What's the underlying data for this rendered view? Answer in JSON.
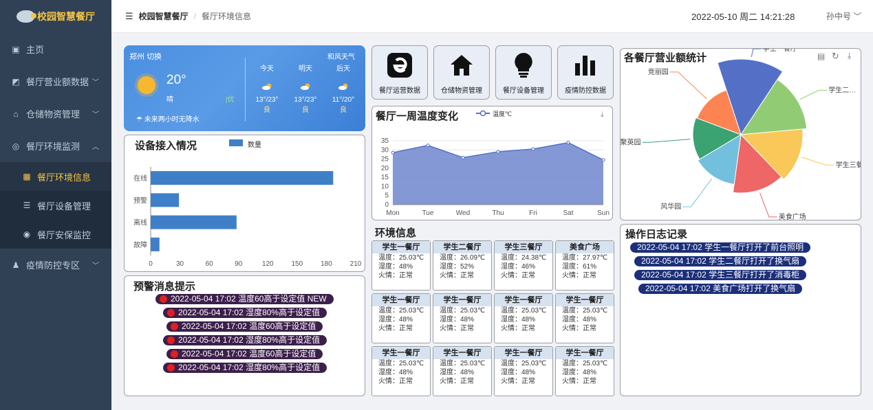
{
  "brand": {
    "title": "校园智慧餐厅"
  },
  "sidebar": {
    "items": [
      {
        "label": "主页",
        "icon": "dashboard-icon"
      },
      {
        "label": "餐厅营业额数据",
        "icon": "chart-icon"
      },
      {
        "label": "仓储物资管理",
        "icon": "home-icon"
      },
      {
        "label": "餐厅环境监测",
        "icon": "monitor-icon"
      },
      {
        "label": "餐厅环境信息",
        "icon": "grid-icon"
      },
      {
        "label": "餐厅设备管理",
        "icon": "sliders-icon"
      },
      {
        "label": "餐厅安保监控",
        "icon": "eye-icon"
      },
      {
        "label": "疫情防控专区",
        "icon": "bell-icon"
      }
    ]
  },
  "header": {
    "breadcrumb_root": "校园智慧餐厅",
    "breadcrumb_current": "餐厅环境信息",
    "datetime": "2022-05-10 周二 14:21:28",
    "user": "孙中号"
  },
  "weather": {
    "city": "郑州",
    "switch": "切换",
    "source": "和风天气",
    "temp": "20°",
    "cond": "晴",
    "aqi": "优",
    "rain": "未来两小时无降水",
    "forecast": [
      {
        "day": "今天",
        "range": "13°/23°",
        "quality": "良"
      },
      {
        "day": "明天",
        "range": "13°/23°",
        "quality": "良"
      },
      {
        "day": "后天",
        "range": "11°/20°",
        "quality": "良"
      }
    ]
  },
  "device": {
    "title": "设备接入情况",
    "legend": "数量",
    "chart_data": {
      "type": "bar",
      "orientation": "horizontal",
      "categories": [
        "在线",
        "预警",
        "离线",
        "故障"
      ],
      "values": [
        187,
        29,
        88,
        9
      ],
      "xlim": [
        0,
        210
      ],
      "xticks": [
        "0",
        "30",
        "60",
        "90",
        "120",
        "150",
        "180",
        "210"
      ],
      "legend_placement": "top",
      "color": "#3f7fc7"
    }
  },
  "nav": [
    {
      "label": "餐厅运营数据",
      "icon": "e-logo-icon"
    },
    {
      "label": "仓储物资管理",
      "icon": "home-icon"
    },
    {
      "label": "餐厅设备管理",
      "icon": "bulb-icon"
    },
    {
      "label": "疫情防控数据",
      "icon": "bar-chart-icon"
    }
  ],
  "temperature": {
    "title": "餐厅一周温度变化",
    "legend": "温度℃",
    "chart_data": {
      "type": "area",
      "categories": [
        "Mon",
        "Tue",
        "Wed",
        "Thu",
        "Fri",
        "Sat",
        "Sun"
      ],
      "values": [
        28.5,
        32.5,
        25.8,
        29,
        30.5,
        34,
        24.5
      ],
      "ylim": [
        0,
        35
      ],
      "yticks": [
        "0",
        "5",
        "10",
        "15",
        "20",
        "25",
        "30",
        "35"
      ],
      "legend_placement": "top",
      "color": "#6e86cf"
    }
  },
  "revenue": {
    "title": "各餐厅营业额统计",
    "chart_data": {
      "type": "pie",
      "rose": true,
      "labels": [
        "学生一餐厅",
        "学生二…",
        "学生三餐厅",
        "美食广场",
        "风华园",
        "聚英园",
        "竞丽园"
      ],
      "values": [
        100,
        86,
        80,
        75,
        63,
        60,
        58
      ],
      "colors": [
        "#5470c6",
        "#91cc75",
        "#fac858",
        "#ee6666",
        "#73c0de",
        "#3ba272",
        "#fc8452"
      ]
    }
  },
  "env": {
    "title": "环境信息",
    "labels": {
      "temp": "温度：",
      "hum": "湿度：",
      "fire": "火情："
    },
    "cards": [
      {
        "name": "学生一餐厅",
        "temp": "25.03℃",
        "hum": "48%",
        "fire": "正常"
      },
      {
        "name": "学生二餐厅",
        "temp": "26.09℃",
        "hum": "52%",
        "fire": "正常"
      },
      {
        "name": "学生三餐厅",
        "temp": "24.38℃",
        "hum": "46%",
        "fire": "正常"
      },
      {
        "name": "美食广场",
        "temp": "27.97℃",
        "hum": "61%",
        "fire": "正常"
      },
      {
        "name": "学生一餐厅",
        "temp": "25.03℃",
        "hum": "48%",
        "fire": "正常"
      },
      {
        "name": "学生一餐厅",
        "temp": "25.03℃",
        "hum": "48%",
        "fire": "正常"
      },
      {
        "name": "学生一餐厅",
        "temp": "25.03℃",
        "hum": "48%",
        "fire": "正常"
      },
      {
        "name": "学生一餐厅",
        "temp": "25.03℃",
        "hum": "48%",
        "fire": "正常"
      },
      {
        "name": "学生一餐厅",
        "temp": "25.03℃",
        "hum": "48%",
        "fire": "正常"
      },
      {
        "name": "学生一餐厅",
        "temp": "25.03℃",
        "hum": "48%",
        "fire": "正常"
      },
      {
        "name": "学生一餐厅",
        "temp": "25.03℃",
        "hum": "48%",
        "fire": "正常"
      },
      {
        "name": "学生一餐厅",
        "temp": "25.03℃",
        "hum": "48%",
        "fire": "正常"
      }
    ]
  },
  "warnings": {
    "title": "预警消息提示",
    "items": [
      "2022-05-04 17:02 温度60高于设定值 NEW",
      "2022-05-04 17:02 湿度80%高于设定值",
      "2022-05-04 17:02 温度60高于设定值",
      "2022-05-04 17:02 湿度80%高于设定值",
      "2022-05-04 17:02 温度60高于设定值",
      "2022-05-04 17:02 湿度80%高于设定值"
    ]
  },
  "logs": {
    "title": "操作日志记录",
    "items": [
      "2022-05-04 17:02 学生一餐厅打开了前台照明",
      "2022-05-04 17:02 学生二餐厅打开了换气扇",
      "2022-05-04 17:02 学生三餐厅打开了消毒柜",
      "2022-05-04 17:02 美食广场打开了换气扇"
    ]
  }
}
